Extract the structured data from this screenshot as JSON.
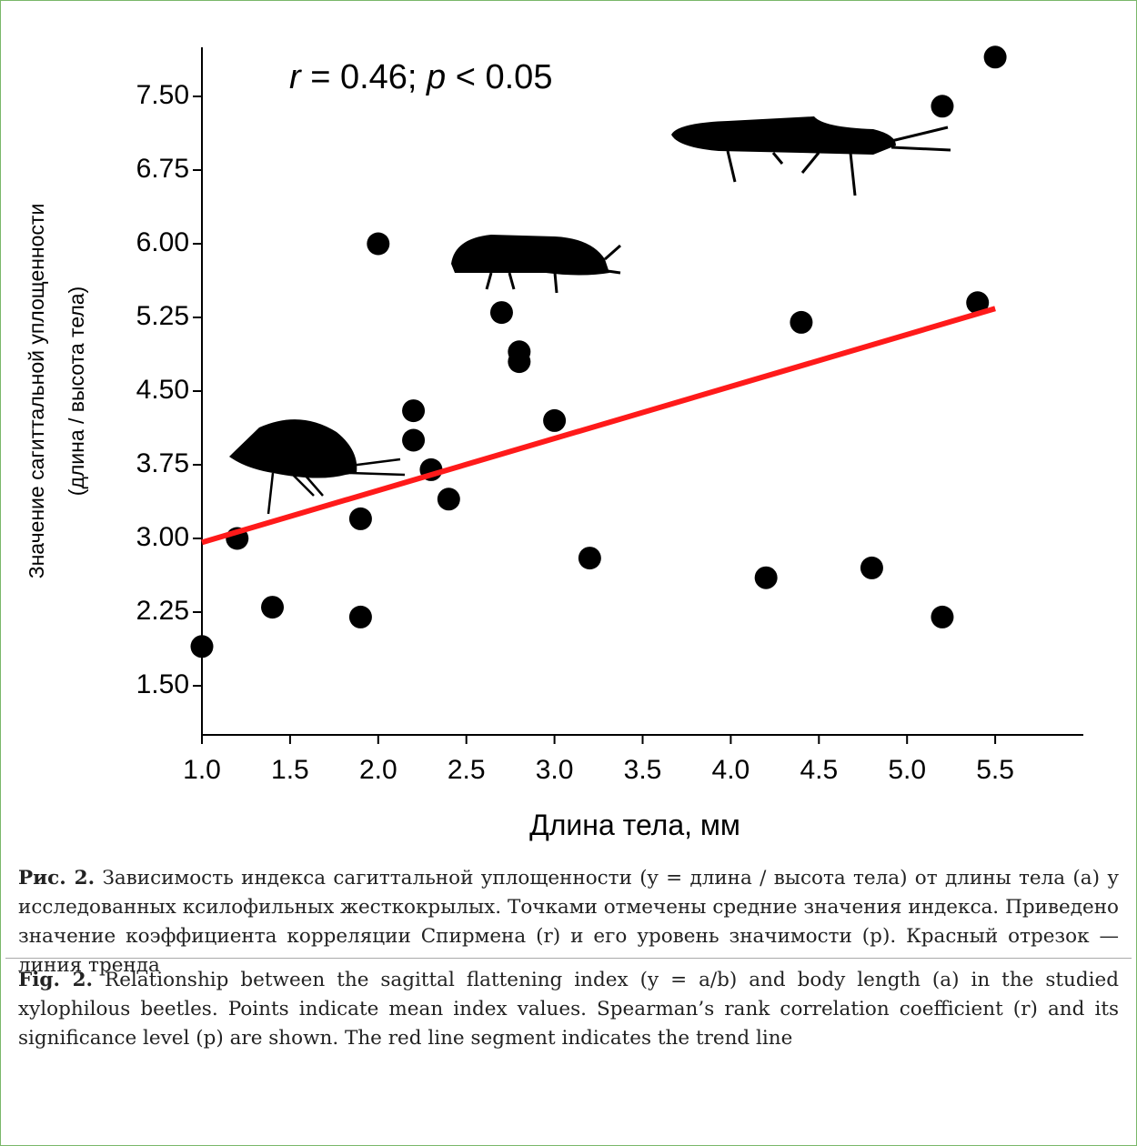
{
  "chart_data": {
    "type": "scatter",
    "annotation": [
      "r",
      " = 0.46; ",
      "p",
      " < 0.05"
    ],
    "xlabel": "Длина тела, мм",
    "ylabel": [
      "Значение сагиттальной уплощенности",
      "(длина / высота тела)"
    ],
    "xlim": [
      1.0,
      6.0
    ],
    "ylim": [
      1.0,
      8.0
    ],
    "xticks": [
      {
        "value": 1.0,
        "label": "1.0"
      },
      1.5,
      {
        "value": 2.0,
        "label": "2.0"
      },
      2.5,
      {
        "value": 3.0,
        "label": "3.0"
      },
      3.5,
      {
        "value": 4.0,
        "label": "4.0"
      },
      4.5,
      {
        "value": 5.0,
        "label": "5.0"
      },
      5.5
    ],
    "yticks": [
      {
        "value": 1.5,
        "label": "1.50"
      },
      {
        "value": 2.25,
        "label": "2.25"
      },
      {
        "value": 3.0,
        "label": "3.00"
      },
      {
        "value": 3.75,
        "label": "3.75"
      },
      {
        "value": 4.5,
        "label": "4.50"
      },
      {
        "value": 5.25,
        "label": "5.25"
      },
      {
        "value": 6.0,
        "label": "6.00"
      },
      {
        "value": 6.75,
        "label": "6.75"
      },
      {
        "value": 7.5,
        "label": "7.50"
      }
    ],
    "points": {
      "color": "#000000",
      "x": [
        1.0,
        1.2,
        1.4,
        1.9,
        1.9,
        2.0,
        2.2,
        2.2,
        2.3,
        2.4,
        2.7,
        2.8,
        2.8,
        3.0,
        3.2,
        4.2,
        4.4,
        4.8,
        5.2,
        5.2,
        5.4,
        5.5
      ],
      "values": [
        1.9,
        3.0,
        2.3,
        3.2,
        2.2,
        6.0,
        4.3,
        4.0,
        3.7,
        3.4,
        5.3,
        4.9,
        4.8,
        4.2,
        2.8,
        2.6,
        5.2,
        2.7,
        7.4,
        2.2,
        5.4,
        7.9
      ]
    },
    "trend": {
      "color": "#ff1a1a",
      "x": [
        1.0,
        5.5
      ],
      "values": [
        2.96,
        5.34
      ]
    }
  },
  "caption_ru": {
    "label": "Рис. 2.",
    "text": "Зависимость индекса сагиттальной уплощенности (y = длина / высота тела) от длины тела (a) у исследованных ксилофильных жесткокрылых. Точками отмечены средние значения индекса. Приведено значение коэффициента корреляции Спирмена (r) и его уровень значимости (p). Красный отрезок — линия тренда"
  },
  "caption_en": {
    "label": "Fig. 2.",
    "text": "Relationship between the sagittal flattening index (y = a/b) and body length (a) in the studied xylophilous beetles. Points indicate mean index values. Spearman’s rank correlation coefficient (r) and its significance level (p) are shown. The red line segment indicates the trend line"
  }
}
